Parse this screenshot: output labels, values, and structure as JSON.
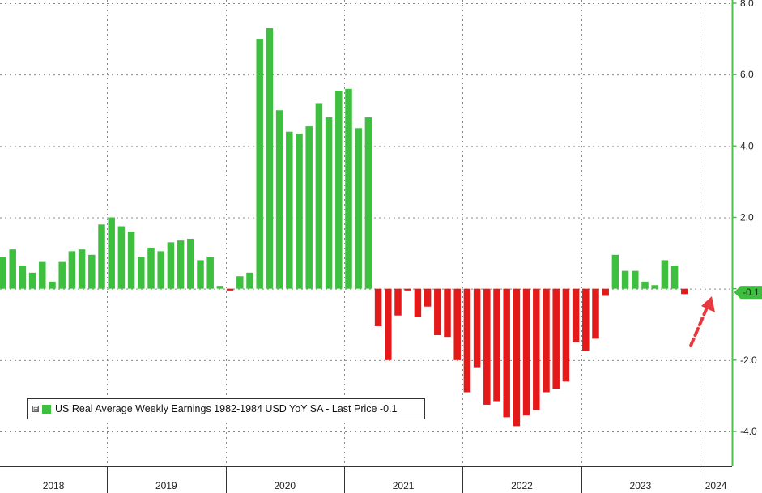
{
  "chart_data": {
    "type": "bar",
    "title": "",
    "xlabel": "",
    "ylabel": "",
    "ylim": [
      -4.4,
      8.0
    ],
    "y_ticks": [
      8.0,
      6.0,
      4.0,
      2.0,
      0,
      -2.0,
      -4.0
    ],
    "y_tick_labels": [
      "8.0",
      "6.0",
      "4.0",
      "2.0",
      "",
      "-2.0",
      "-4.0"
    ],
    "y_axis_side": "right",
    "grid": true,
    "legend_placement": "bottom-left",
    "years": [
      "2018",
      "2019",
      "2020",
      "2021",
      "2022",
      "2023",
      "2024"
    ],
    "series": [
      {
        "name": "US Real Average Weekly Earnings 1982-1984 USD YoY SA",
        "positive_color": "#3fbf3f",
        "negative_color": "#e41919",
        "values": [
          0.9,
          1.1,
          0.65,
          0.45,
          0.75,
          0.2,
          0.75,
          1.05,
          1.1,
          0.95,
          1.8,
          2.0,
          1.75,
          1.6,
          0.9,
          1.15,
          1.05,
          1.3,
          1.35,
          1.4,
          0.8,
          0.9,
          0.08,
          -0.05,
          0.35,
          0.45,
          7.0,
          7.3,
          5.0,
          4.4,
          4.35,
          4.55,
          5.2,
          4.8,
          5.55,
          5.6,
          4.5,
          4.8,
          -1.05,
          -2.0,
          -0.75,
          -0.05,
          -0.8,
          -0.5,
          -1.3,
          -1.35,
          -2.0,
          -2.9,
          -2.2,
          -3.25,
          -3.15,
          -3.6,
          -3.85,
          -3.55,
          -3.4,
          -2.9,
          -2.8,
          -2.6,
          -1.5,
          -1.75,
          -1.4,
          -0.2,
          0.95,
          0.5,
          0.5,
          0.2,
          0.1,
          0.8,
          0.65,
          -0.15
        ]
      }
    ],
    "last_price": -0.1,
    "last_price_label": "-0.1"
  },
  "legend": {
    "toggle": "⊟",
    "text": "US Real Average Weekly Earnings 1982-1984 USD YoY SA - Last Price -0.1"
  },
  "colors": {
    "positive": "#3fbf3f",
    "negative": "#e41919",
    "axis": "#4cbf4c",
    "grid": "#8a8a8a"
  }
}
